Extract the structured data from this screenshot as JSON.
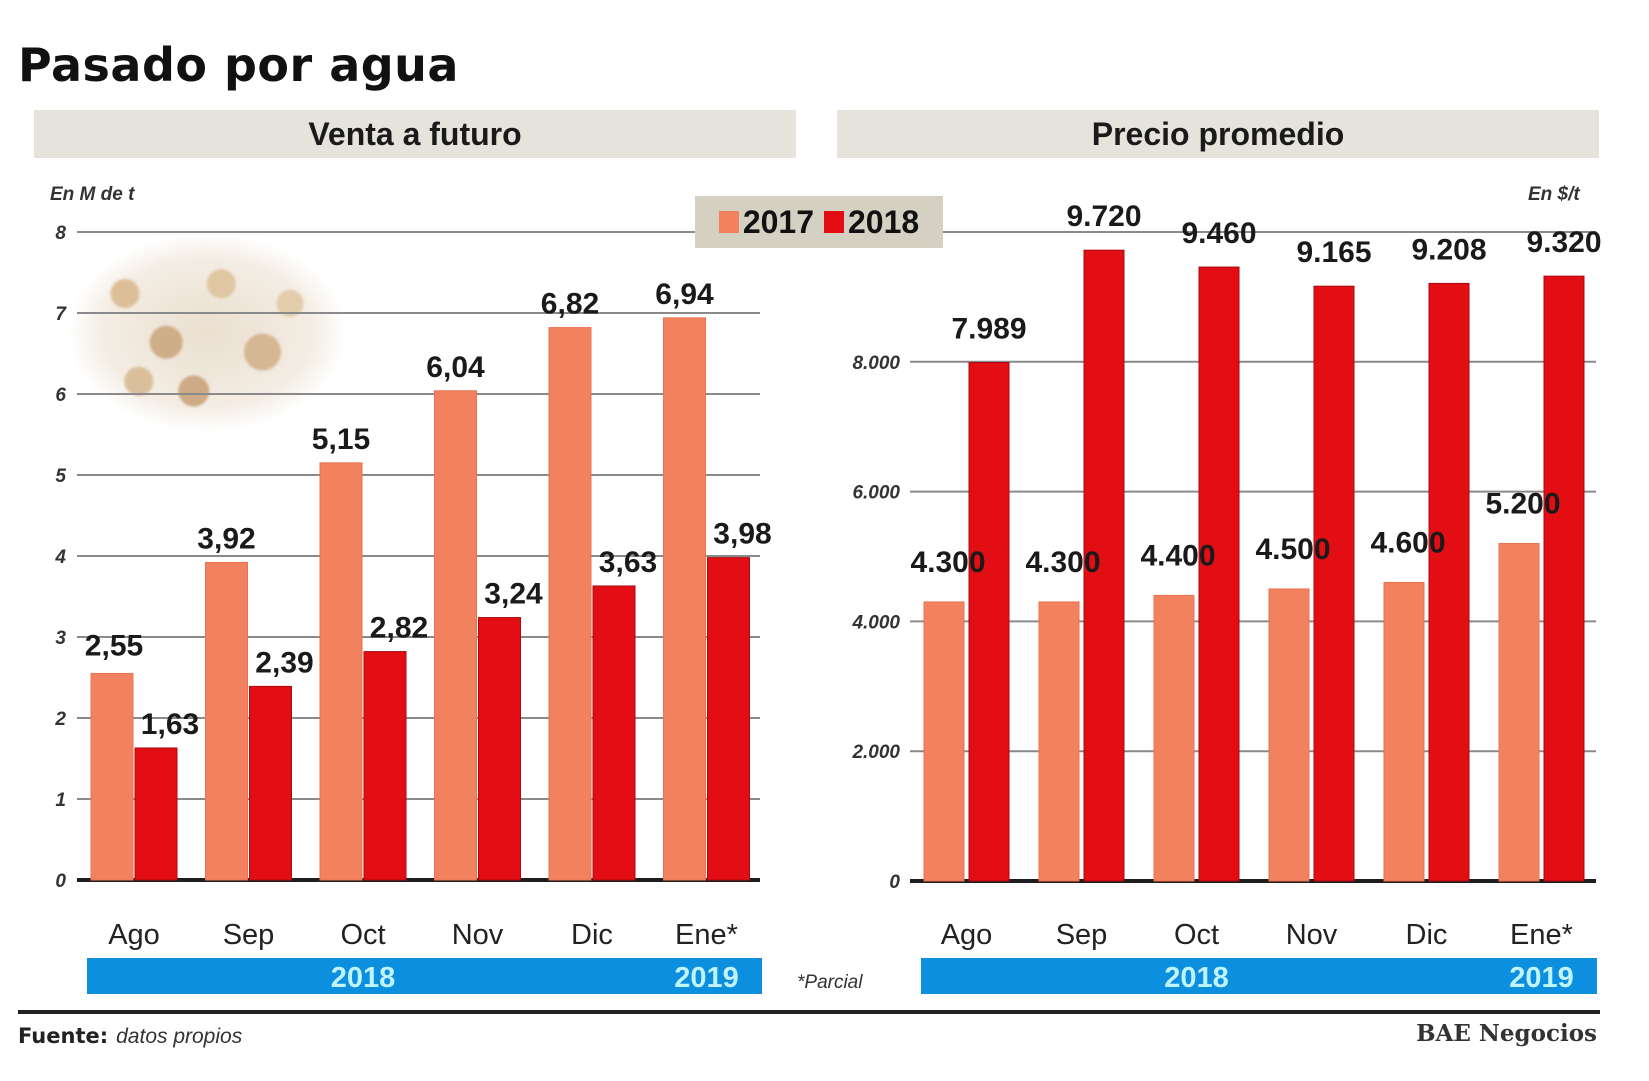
{
  "title": "Pasado por agua",
  "legend": [
    {
      "label": "2017",
      "color": "#f2825f"
    },
    {
      "label": "2018",
      "color": "#e30d14"
    }
  ],
  "footnote": "*Parcial",
  "source": {
    "label": "Fuente:",
    "text": "datos propios"
  },
  "brand": "BAE Negocios",
  "year_bands": [
    {
      "label": "2018"
    },
    {
      "label": "2019"
    }
  ],
  "chart_data": [
    {
      "type": "bar",
      "title": "Venta a futuro",
      "ylabel": "En M de t",
      "xlabel": "",
      "categories": [
        "Ago",
        "Sep",
        "Oct",
        "Nov",
        "Dic",
        "Ene*"
      ],
      "series": [
        {
          "name": "2017",
          "values": [
            2.55,
            3.92,
            5.15,
            6.04,
            6.82,
            6.94
          ],
          "labels": [
            "2,55",
            "3,92",
            "5,15",
            "6,04",
            "6,82",
            "6,94"
          ]
        },
        {
          "name": "2018",
          "values": [
            1.63,
            2.39,
            2.82,
            3.24,
            3.63,
            3.98
          ],
          "labels": [
            "1,63",
            "2,39",
            "2,82",
            "3,24",
            "3,63",
            "3,98"
          ]
        }
      ],
      "ylim": [
        0,
        8
      ],
      "yticks": [
        0,
        1,
        2,
        3,
        4,
        5,
        6,
        7,
        8
      ],
      "ytick_labels": [
        "0",
        "1",
        "2",
        "3",
        "4",
        "5",
        "6",
        "7",
        "8"
      ],
      "grid": true,
      "legend_position": "top-right",
      "year_groups": [
        "2018",
        "2019"
      ]
    },
    {
      "type": "bar",
      "title": "Precio promedio",
      "ylabel": "En $/t",
      "xlabel": "",
      "categories": [
        "Ago",
        "Sep",
        "Oct",
        "Nov",
        "Dic",
        "Ene*"
      ],
      "series": [
        {
          "name": "2017",
          "values": [
            4300,
            4300,
            4400,
            4500,
            4600,
            5200
          ],
          "labels": [
            "4.300",
            "4.300",
            "4.400",
            "4.500",
            "4.600",
            "5.200"
          ]
        },
        {
          "name": "2018",
          "values": [
            7989,
            9720,
            9460,
            9165,
            9208,
            9320
          ],
          "labels": [
            "7.989",
            "9.720",
            "9.460",
            "9.165",
            "9.208",
            "9.320"
          ]
        }
      ],
      "ylim": [
        0,
        10000
      ],
      "yticks": [
        0,
        2000,
        4000,
        6000,
        8000,
        10000
      ],
      "ytick_labels": [
        "0",
        "2.000",
        "4.000",
        "6.000",
        "8.000",
        ""
      ],
      "grid": true,
      "legend_position": "top-left",
      "year_groups": [
        "2018",
        "2019"
      ]
    }
  ]
}
